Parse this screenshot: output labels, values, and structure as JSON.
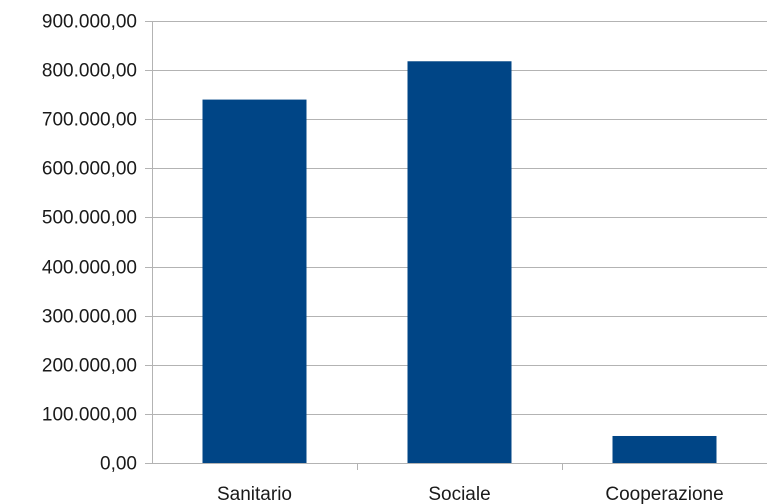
{
  "chart_data": {
    "type": "bar",
    "categories": [
      "Sanitario",
      "Sociale",
      "Cooperazione"
    ],
    "values": [
      740000,
      818000,
      55000
    ],
    "ylim": [
      0,
      900000
    ],
    "yticks": [
      "0,00",
      "100.000,00",
      "200.000,00",
      "300.000,00",
      "400.000,00",
      "500.000,00",
      "600.000,00",
      "700.000,00",
      "800.000,00",
      "900.000,00"
    ],
    "title": "",
    "xlabel": "",
    "ylabel": "",
    "grid": true,
    "legend": "none",
    "colors": {
      "bar": "#004586",
      "grid": "#b3b3b3",
      "axis": "#b3b3b3",
      "text": "#1a1a1a"
    }
  }
}
